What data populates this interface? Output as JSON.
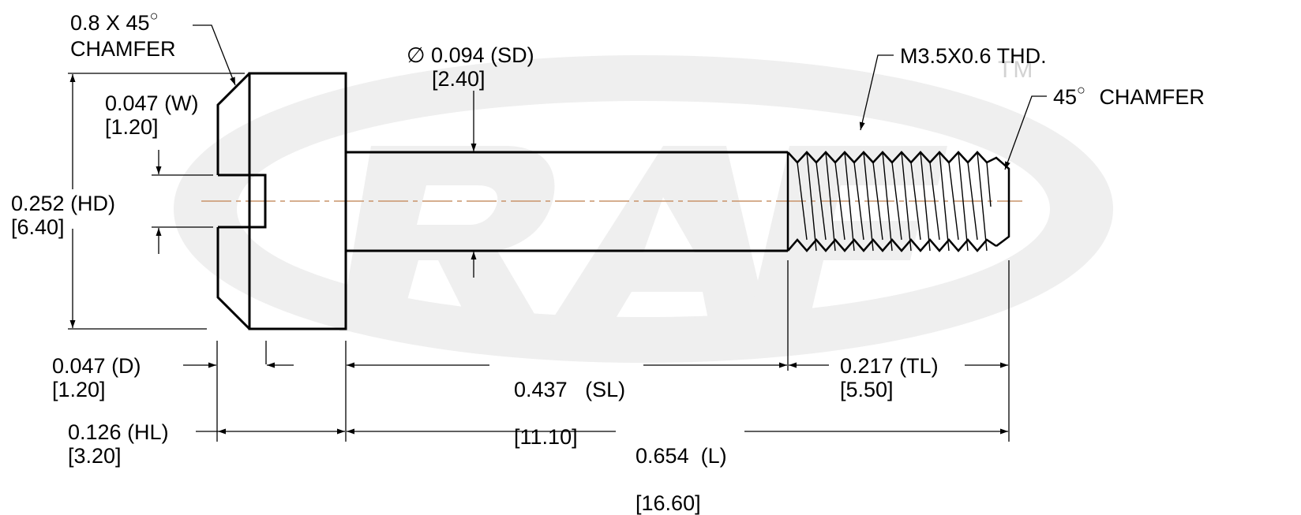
{
  "watermark": {
    "logo_text": "RAF",
    "trademark": "TM"
  },
  "callouts": {
    "head_chamfer": {
      "line1": "0.8 X 45",
      "degree": "○",
      "line2": "CHAMFER"
    },
    "slot_width": {
      "imperial": "0.047 (W)",
      "metric": "[1.20]"
    },
    "head_diameter": {
      "imperial": "0.252 (HD)",
      "metric": "[6.40]"
    },
    "shank_diameter": {
      "symbol": "∅",
      "imperial": "0.094 (SD)",
      "metric": "[2.40]"
    },
    "thread": {
      "label": "M3.5X0.6 THD."
    },
    "end_chamfer": {
      "angle": "45",
      "degree": "○",
      "label": "CHAMFER"
    },
    "slot_depth": {
      "imperial": "0.047 (D)",
      "metric": "[1.20]"
    },
    "shank_length": {
      "imperial": "0.437   (SL)",
      "metric": "[11.10]"
    },
    "thread_length": {
      "imperial": "0.217 (TL)",
      "metric": "[5.50]"
    },
    "head_length": {
      "imperial": "0.126 (HL)",
      "metric": "[3.20]"
    },
    "overall_length": {
      "imperial": "0.654  (L)",
      "metric": "[16.60]"
    }
  },
  "colors": {
    "line": "#000000",
    "centerline": "#c8946a",
    "watermark": "#ececec"
  }
}
